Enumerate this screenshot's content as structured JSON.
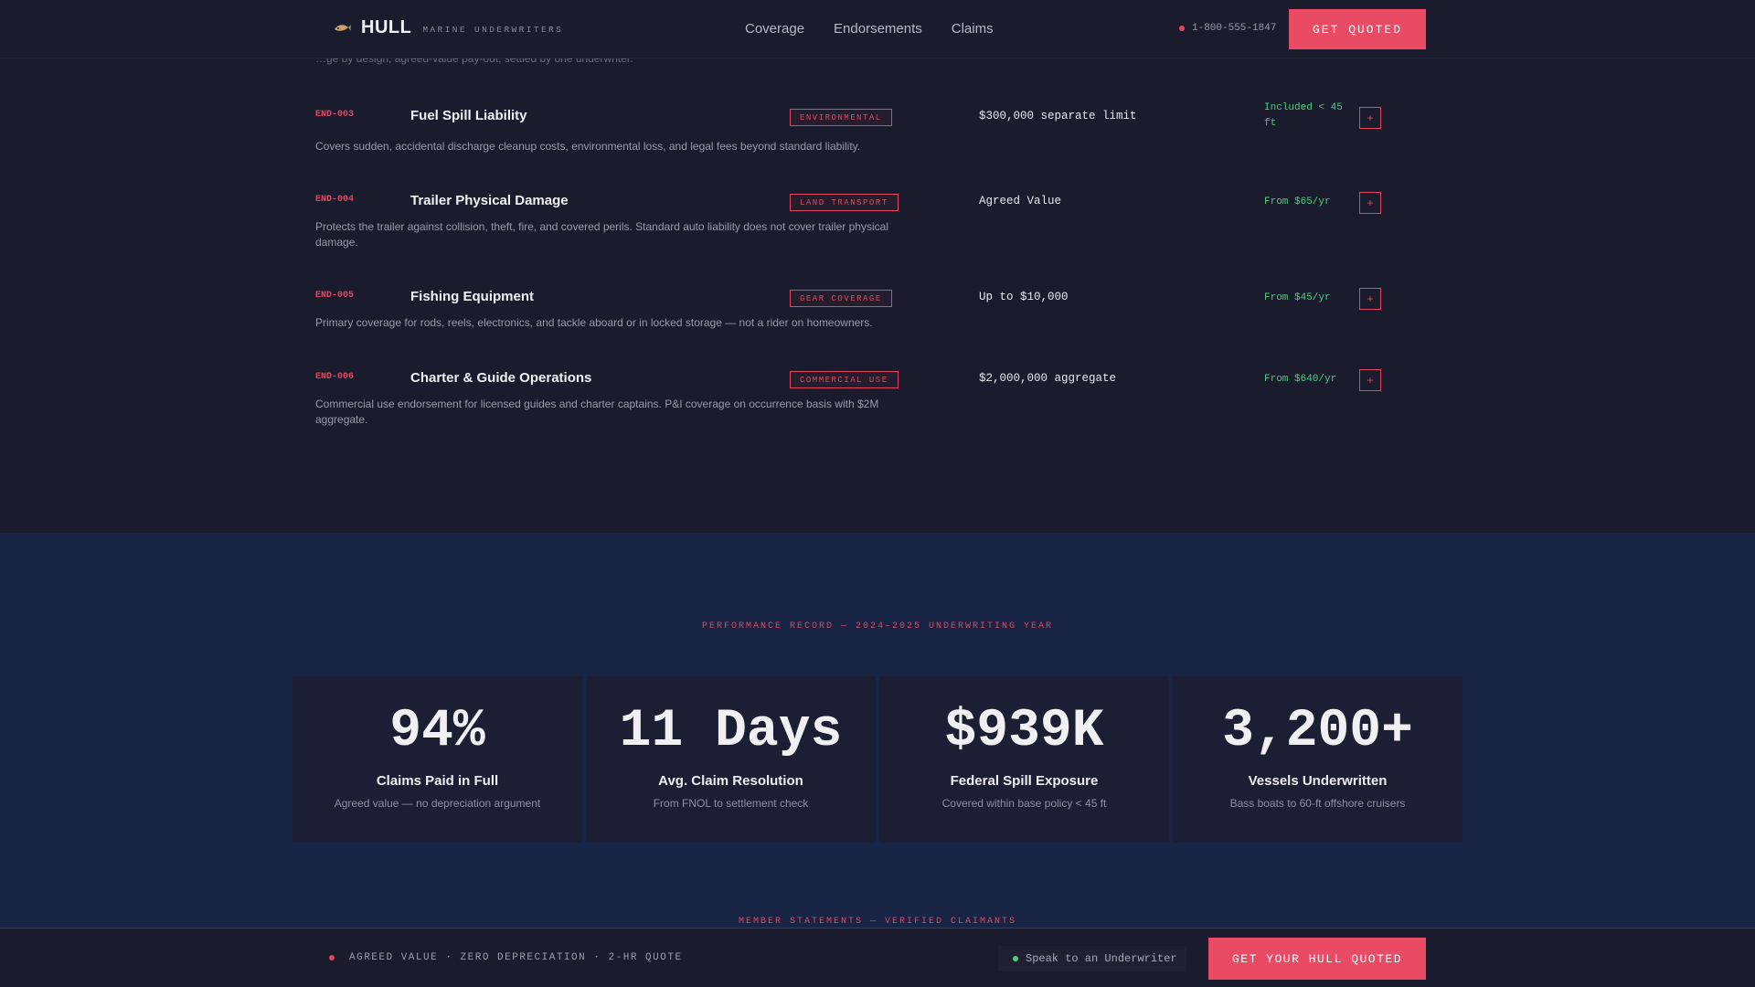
{
  "header": {
    "brand_name": "HULL",
    "brand_sub": "MARINE UNDERWRITERS",
    "nav": [
      "Coverage",
      "Endorsements",
      "Claims"
    ],
    "phone": "1-800-555-1847",
    "cta": "GET QUOTED"
  },
  "clipped_text": "…ge by design; agreed-value pay-out, settled by one underwriter.",
  "endorsements": [
    {
      "code": "END-003",
      "title": "Fuel Spill Liability",
      "tag": "ENVIRONMENTAL",
      "limit": "$300,000 separate limit",
      "price": "Included < 45 ft",
      "desc": "Covers sudden, accidental discharge cleanup costs, environmental loss, and legal fees beyond standard liability."
    },
    {
      "code": "END-004",
      "title": "Trailer Physical Damage",
      "tag": "LAND TRANSPORT",
      "limit": "Agreed Value",
      "price": "From $65/yr",
      "desc": "Protects the trailer against collision, theft, fire, and covered perils. Standard auto liability does not cover trailer physical damage."
    },
    {
      "code": "END-005",
      "title": "Fishing Equipment",
      "tag": "GEAR COVERAGE",
      "limit": "Up to $10,000",
      "price": "From $45/yr",
      "desc": "Primary coverage for rods, reels, electronics, and tackle aboard or in locked storage — not a rider on homeowners."
    },
    {
      "code": "END-006",
      "title": "Charter & Guide Operations",
      "tag": "COMMERCIAL USE",
      "limit": "$2,000,000 aggregate",
      "price": "From $640/yr",
      "desc": "Commercial use endorsement for licensed guides and charter captains. P&I coverage on occurrence basis with $2M aggregate."
    }
  ],
  "add_symbol": "+",
  "performance": {
    "label": "PERFORMANCE RECORD — 2024–2025 UNDERWRITING YEAR",
    "stats": [
      {
        "value": "94%",
        "label": "Claims Paid in Full",
        "sub": "Agreed value — no depreciation argument"
      },
      {
        "value": "11 Days",
        "label": "Avg. Claim Resolution",
        "sub": "From FNOL to settlement check"
      },
      {
        "value": "$939K",
        "label": "Federal Spill Exposure",
        "sub": "Covered within base policy < 45 ft"
      },
      {
        "value": "3,200+",
        "label": "Vessels Underwritten",
        "sub": "Bass boats to 60-ft offshore cruisers"
      }
    ]
  },
  "members_label": "MEMBER STATEMENTS — VERIFIED CLAIMANTS",
  "bottom_bar": {
    "tagline": "AGREED VALUE · ZERO DEPRECIATION · 2-HR QUOTE",
    "speak": "Speak to an Underwriter",
    "cta": "GET YOUR HULL QUOTED"
  },
  "colors": {
    "accent": "#e94b64",
    "price_green": "#4cd07f",
    "background": "#1a1b2c",
    "band": "#172444"
  }
}
